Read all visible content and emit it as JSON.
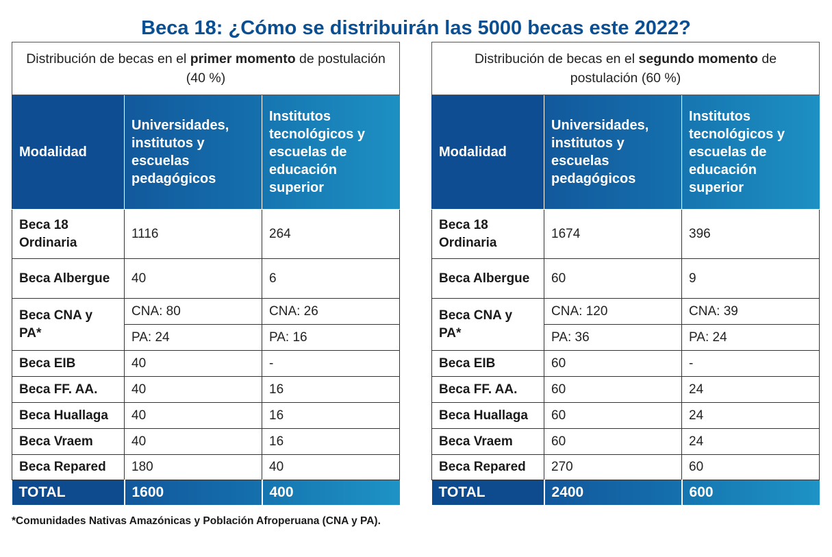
{
  "title": "Beca 18: ¿Cómo se distribuirán las 5000 becas este 2022?",
  "headers": [
    "Modalidad",
    "Universidades, institutos y escuelas pedagógicos",
    "Institutos tecnológicos y escuelas de educación superior"
  ],
  "tables": [
    {
      "caption_pre": "Distribución de becas en el ",
      "caption_bold": "primer momento",
      "caption_post": " de postulación (40 %)",
      "rows": [
        [
          "Beca 18 Ordinaria",
          "1116",
          "264"
        ],
        [
          "Beca Albergue",
          "40",
          "6"
        ],
        [
          "Beca CNA y PA*",
          "CNA: 80",
          "CNA: 26",
          "PA: 24",
          "PA: 16"
        ],
        [
          "Beca EIB",
          "40",
          "-"
        ],
        [
          "Beca FF. AA.",
          "40",
          "16"
        ],
        [
          "Beca Huallaga",
          "40",
          "16"
        ],
        [
          "Beca Vraem",
          "40",
          "16"
        ],
        [
          "Beca Repared",
          "180",
          "40"
        ]
      ],
      "total": [
        "TOTAL",
        "1600",
        "400"
      ]
    },
    {
      "caption_pre": "Distribución de becas en el ",
      "caption_bold": "segundo momento",
      "caption_post": " de postulación (60 %)",
      "rows": [
        [
          "Beca 18 Ordinaria",
          "1674",
          "396"
        ],
        [
          "Beca Albergue",
          "60",
          "9"
        ],
        [
          "Beca CNA y PA*",
          "CNA: 120",
          "CNA: 39",
          "PA: 36",
          "PA: 24"
        ],
        [
          "Beca EIB",
          "60",
          "-"
        ],
        [
          "Beca FF. AA.",
          "60",
          "24"
        ],
        [
          "Beca Huallaga",
          "60",
          "24"
        ],
        [
          "Beca Vraem",
          "60",
          "24"
        ],
        [
          "Beca Repared",
          "270",
          "60"
        ]
      ],
      "total": [
        "TOTAL",
        "2400",
        "600"
      ]
    }
  ],
  "footnote": "*Comunidades Nativas Amazónicas y Población Afroperuana (CNA y PA).",
  "colors": {
    "title": "#0b4f93",
    "gradient_start": "#0c468c",
    "gradient_end": "#1d8fc3"
  }
}
